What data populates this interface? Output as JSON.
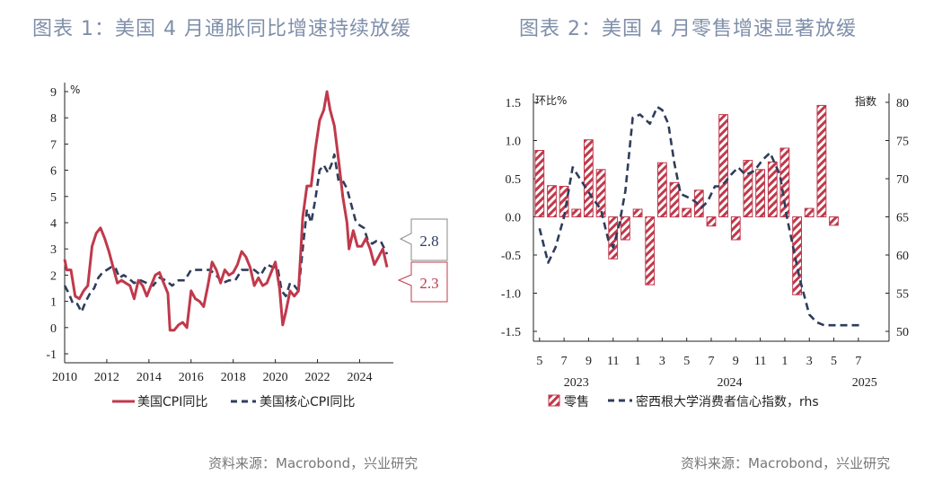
{
  "figures": [
    {
      "title": "图表 1：美国 4 月通胀同比增速持续放缓",
      "source": "资料来源：Macrobond，兴业研究"
    },
    {
      "title": "图表 2：美国 4 月零售增速显著放缓",
      "source": "资料来源：Macrobond，兴业研究"
    }
  ],
  "colors": {
    "headline": "#c0394b",
    "core": "#2f3d5c",
    "title": "#7f8fa9",
    "retail": "#c0394b"
  },
  "chart_data": [
    {
      "type": "line",
      "unit_label": "%",
      "ylim": [
        -1,
        9
      ],
      "yticks": [
        -1,
        0,
        1,
        2,
        3,
        4,
        5,
        6,
        7,
        8,
        9
      ],
      "xlim": [
        2010,
        2025.6
      ],
      "xticks": [
        2010,
        2012,
        2014,
        2016,
        2018,
        2020,
        2022,
        2024
      ],
      "grid": false,
      "legend_position": "bottom",
      "callouts": [
        {
          "text": "2.8",
          "series": "美国核心CPI同比"
        },
        {
          "text": "2.3",
          "series": "美国CPI同比"
        }
      ],
      "series": [
        {
          "name": "美国CPI同比",
          "style": "solid",
          "color": "#c0394b",
          "x": [
            2010.0,
            2010.1,
            2010.3,
            2010.5,
            2010.7,
            2010.9,
            2011.1,
            2011.3,
            2011.5,
            2011.7,
            2011.9,
            2012.1,
            2012.3,
            2012.5,
            2012.7,
            2012.9,
            2013.1,
            2013.3,
            2013.5,
            2013.7,
            2013.9,
            2014.1,
            2014.3,
            2014.5,
            2014.7,
            2014.9,
            2015.0,
            2015.2,
            2015.4,
            2015.6,
            2015.8,
            2016.0,
            2016.2,
            2016.4,
            2016.6,
            2016.8,
            2017.0,
            2017.2,
            2017.4,
            2017.6,
            2017.8,
            2018.0,
            2018.2,
            2018.4,
            2018.6,
            2018.8,
            2019.0,
            2019.2,
            2019.4,
            2019.6,
            2019.8,
            2020.0,
            2020.2,
            2020.35,
            2020.5,
            2020.7,
            2020.9,
            2021.1,
            2021.3,
            2021.5,
            2021.7,
            2021.9,
            2022.1,
            2022.3,
            2022.45,
            2022.6,
            2022.8,
            2023.0,
            2023.2,
            2023.4,
            2023.5,
            2023.7,
            2023.9,
            2024.1,
            2024.3,
            2024.5,
            2024.7,
            2024.9,
            2025.1,
            2025.3
          ],
          "y": [
            2.6,
            2.2,
            2.2,
            1.2,
            1.1,
            1.4,
            1.6,
            3.1,
            3.6,
            3.8,
            3.4,
            2.9,
            2.3,
            1.7,
            1.8,
            1.7,
            1.6,
            1.1,
            1.8,
            1.6,
            1.2,
            1.6,
            2.0,
            2.1,
            1.7,
            1.3,
            -0.1,
            -0.1,
            0.1,
            0.2,
            0.0,
            1.4,
            1.1,
            1.0,
            0.8,
            1.6,
            2.5,
            2.2,
            1.7,
            2.2,
            2.0,
            2.1,
            2.4,
            2.9,
            2.7,
            2.3,
            1.6,
            1.9,
            1.6,
            1.7,
            2.1,
            2.5,
            1.5,
            0.1,
            0.6,
            1.4,
            1.2,
            1.4,
            4.2,
            5.4,
            5.4,
            6.8,
            7.9,
            8.3,
            9.0,
            8.3,
            7.7,
            6.4,
            5.0,
            4.0,
            3.0,
            3.7,
            3.1,
            3.1,
            3.4,
            3.0,
            2.4,
            2.7,
            3.0,
            2.3
          ]
        },
        {
          "name": "美国核心CPI同比",
          "style": "dashed",
          "color": "#2f3d5c",
          "x": [
            2010.0,
            2010.2,
            2010.4,
            2010.6,
            2010.8,
            2011.0,
            2011.2,
            2011.4,
            2011.6,
            2011.8,
            2012.0,
            2012.2,
            2012.4,
            2012.6,
            2012.8,
            2013.0,
            2013.3,
            2013.6,
            2013.9,
            2014.2,
            2014.5,
            2014.8,
            2015.1,
            2015.4,
            2015.7,
            2016.0,
            2016.3,
            2016.6,
            2016.9,
            2017.2,
            2017.5,
            2017.8,
            2018.1,
            2018.4,
            2018.7,
            2019.0,
            2019.3,
            2019.6,
            2019.9,
            2020.1,
            2020.3,
            2020.5,
            2020.7,
            2020.9,
            2021.1,
            2021.3,
            2021.5,
            2021.7,
            2021.9,
            2022.1,
            2022.3,
            2022.5,
            2022.7,
            2022.8,
            2023.0,
            2023.2,
            2023.4,
            2023.6,
            2023.8,
            2024.0,
            2024.2,
            2024.4,
            2024.6,
            2024.8,
            2025.0,
            2025.3
          ],
          "y": [
            1.6,
            1.3,
            0.9,
            0.9,
            0.6,
            1.0,
            1.3,
            1.5,
            1.9,
            2.1,
            2.2,
            2.3,
            2.3,
            1.9,
            2.0,
            1.9,
            1.7,
            1.8,
            1.7,
            1.6,
            1.9,
            1.8,
            1.6,
            1.8,
            1.8,
            2.2,
            2.2,
            2.2,
            2.2,
            2.0,
            1.7,
            1.8,
            1.8,
            2.2,
            2.2,
            2.2,
            2.0,
            2.4,
            2.3,
            2.3,
            1.4,
            1.2,
            1.7,
            1.6,
            1.4,
            3.0,
            4.5,
            4.0,
            4.9,
            6.0,
            6.2,
            5.9,
            6.3,
            6.6,
            5.6,
            5.6,
            5.3,
            4.7,
            4.1,
            3.9,
            3.8,
            3.3,
            3.2,
            3.3,
            3.3,
            2.8
          ]
        }
      ]
    },
    {
      "type": "bar",
      "left_unit_label": "环比%",
      "right_unit_label": "指数",
      "ylim_left": [
        -1.5,
        1.5
      ],
      "yticks_left": [
        "1.5",
        "1.0",
        "0.5",
        "0.0",
        "-0.5",
        "-1.0",
        "-1.5"
      ],
      "ylim_right": [
        50,
        80
      ],
      "yticks_right": [
        80,
        75,
        70,
        65,
        60,
        55,
        50
      ],
      "xlim": [
        -0.5,
        28.5
      ],
      "xtick_labels": [
        "5",
        "7",
        "9",
        "11",
        "1",
        "3",
        "5",
        "7",
        "9",
        "11",
        "1",
        "3",
        "5",
        "7"
      ],
      "year_labels": [
        {
          "year": "2023",
          "month_index": 3
        },
        {
          "year": "2024",
          "month_index": 15.5
        },
        {
          "year": "2025",
          "month_index": 26.5
        }
      ],
      "legend_position": "bottom",
      "legend": [
        "零售",
        "密西根大学消费者信心指数，rhs"
      ],
      "bar_series": {
        "name": "零售",
        "axis": "left",
        "pattern": "hatched",
        "values": [
          0.87,
          0.41,
          0.4,
          0.1,
          1.01,
          0.62,
          -0.55,
          -0.3,
          0.1,
          -0.89,
          0.71,
          0.45,
          0.11,
          0.35,
          -0.12,
          1.34,
          -0.3,
          0.74,
          0.62,
          0.72,
          0.9,
          -1.02,
          0.11,
          1.46,
          -0.11
        ]
      },
      "line_series": {
        "name": "密西根大学消费者信心指数，rhs",
        "axis": "right",
        "style": "dashed",
        "x": [
          0,
          0.7,
          1.3,
          2,
          2.7,
          3.5,
          4.3,
          5,
          5.6,
          6,
          6.5,
          7,
          7.6,
          8.2,
          9,
          9.6,
          10,
          10.5,
          11,
          11.5,
          12.2,
          12.7,
          13.2,
          13.7,
          14.3,
          14.7,
          15.1,
          15.6,
          16.2,
          16.8,
          17.5,
          18.2,
          18.8,
          19.6,
          20.2,
          21.2,
          22,
          22.6,
          23.2,
          23.8,
          24.3,
          24.9,
          25.4,
          26.3
        ],
        "y": [
          63.5,
          59,
          61,
          65,
          71.5,
          69.5,
          67.5,
          66,
          62,
          61,
          64,
          68.4,
          78,
          78.4,
          77.2,
          79.4,
          79,
          77.2,
          72,
          68,
          67.5,
          67,
          66.2,
          67,
          69,
          69,
          69.5,
          70.5,
          71.5,
          70.5,
          71,
          72.5,
          73.4,
          70.5,
          64.7,
          57,
          52.2,
          51.2,
          50.8,
          50.8,
          50.8,
          50.8,
          50.8,
          50.8
        ]
      }
    }
  ]
}
